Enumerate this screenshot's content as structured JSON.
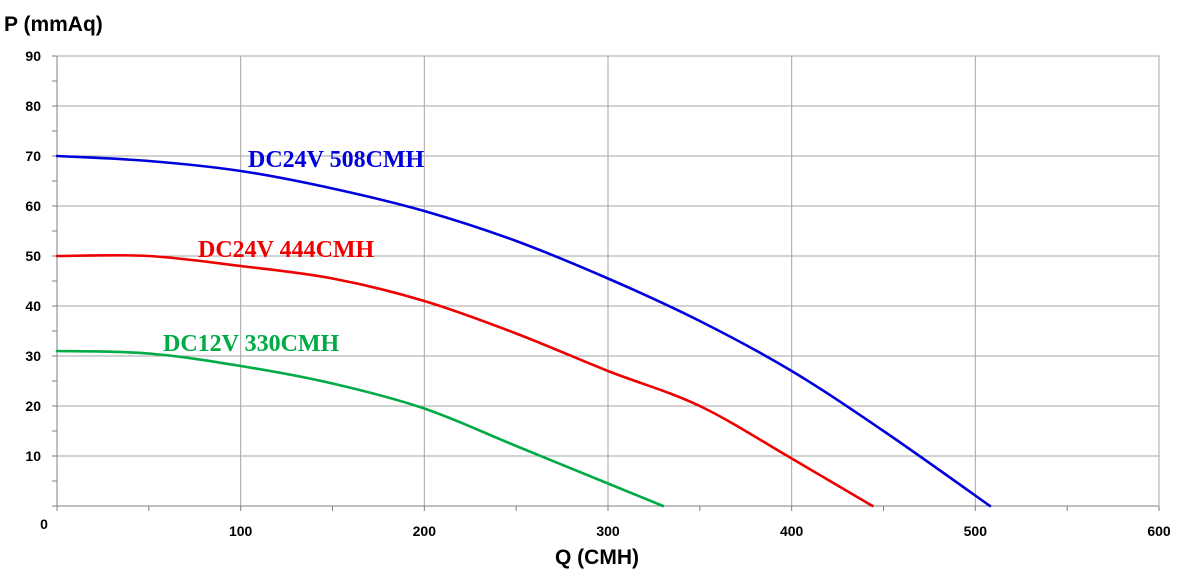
{
  "chart_data": {
    "type": "line",
    "title": "",
    "xlabel": "Q (CMH)",
    "ylabel": "P (mmAq)",
    "xlim": [
      0,
      600
    ],
    "ylim": [
      0,
      90
    ],
    "x_ticks": [
      0,
      100,
      200,
      300,
      400,
      500,
      600
    ],
    "y_ticks": [
      10,
      20,
      30,
      40,
      50,
      60,
      70,
      80,
      90
    ],
    "x_tick_labels": [
      "0",
      "100",
      "200",
      "300",
      "400",
      "500",
      "600"
    ],
    "y_tick_labels": [
      "10",
      "20",
      "30",
      "40",
      "50",
      "60",
      "70",
      "80",
      "90"
    ],
    "grid": true,
    "series": [
      {
        "name": "DC24V  508CMH",
        "color": "#0000dd",
        "x": [
          0,
          50,
          100,
          150,
          200,
          250,
          300,
          350,
          400,
          450,
          508
        ],
        "y": [
          70,
          69,
          67,
          63.5,
          59,
          53,
          45.5,
          37,
          27,
          15,
          0
        ]
      },
      {
        "name": "DC24V  444CMH",
        "color": "#ee0000",
        "x": [
          0,
          50,
          100,
          150,
          200,
          250,
          300,
          350,
          400,
          444
        ],
        "y": [
          50,
          50,
          48,
          45.5,
          41,
          34.5,
          27,
          20,
          9.5,
          0
        ]
      },
      {
        "name": "DC12V  330CMH",
        "color": "#00aa44",
        "x": [
          0,
          50,
          100,
          150,
          200,
          250,
          300,
          330
        ],
        "y": [
          31,
          30.5,
          28,
          24.5,
          19.5,
          12,
          4.5,
          0
        ]
      }
    ]
  }
}
